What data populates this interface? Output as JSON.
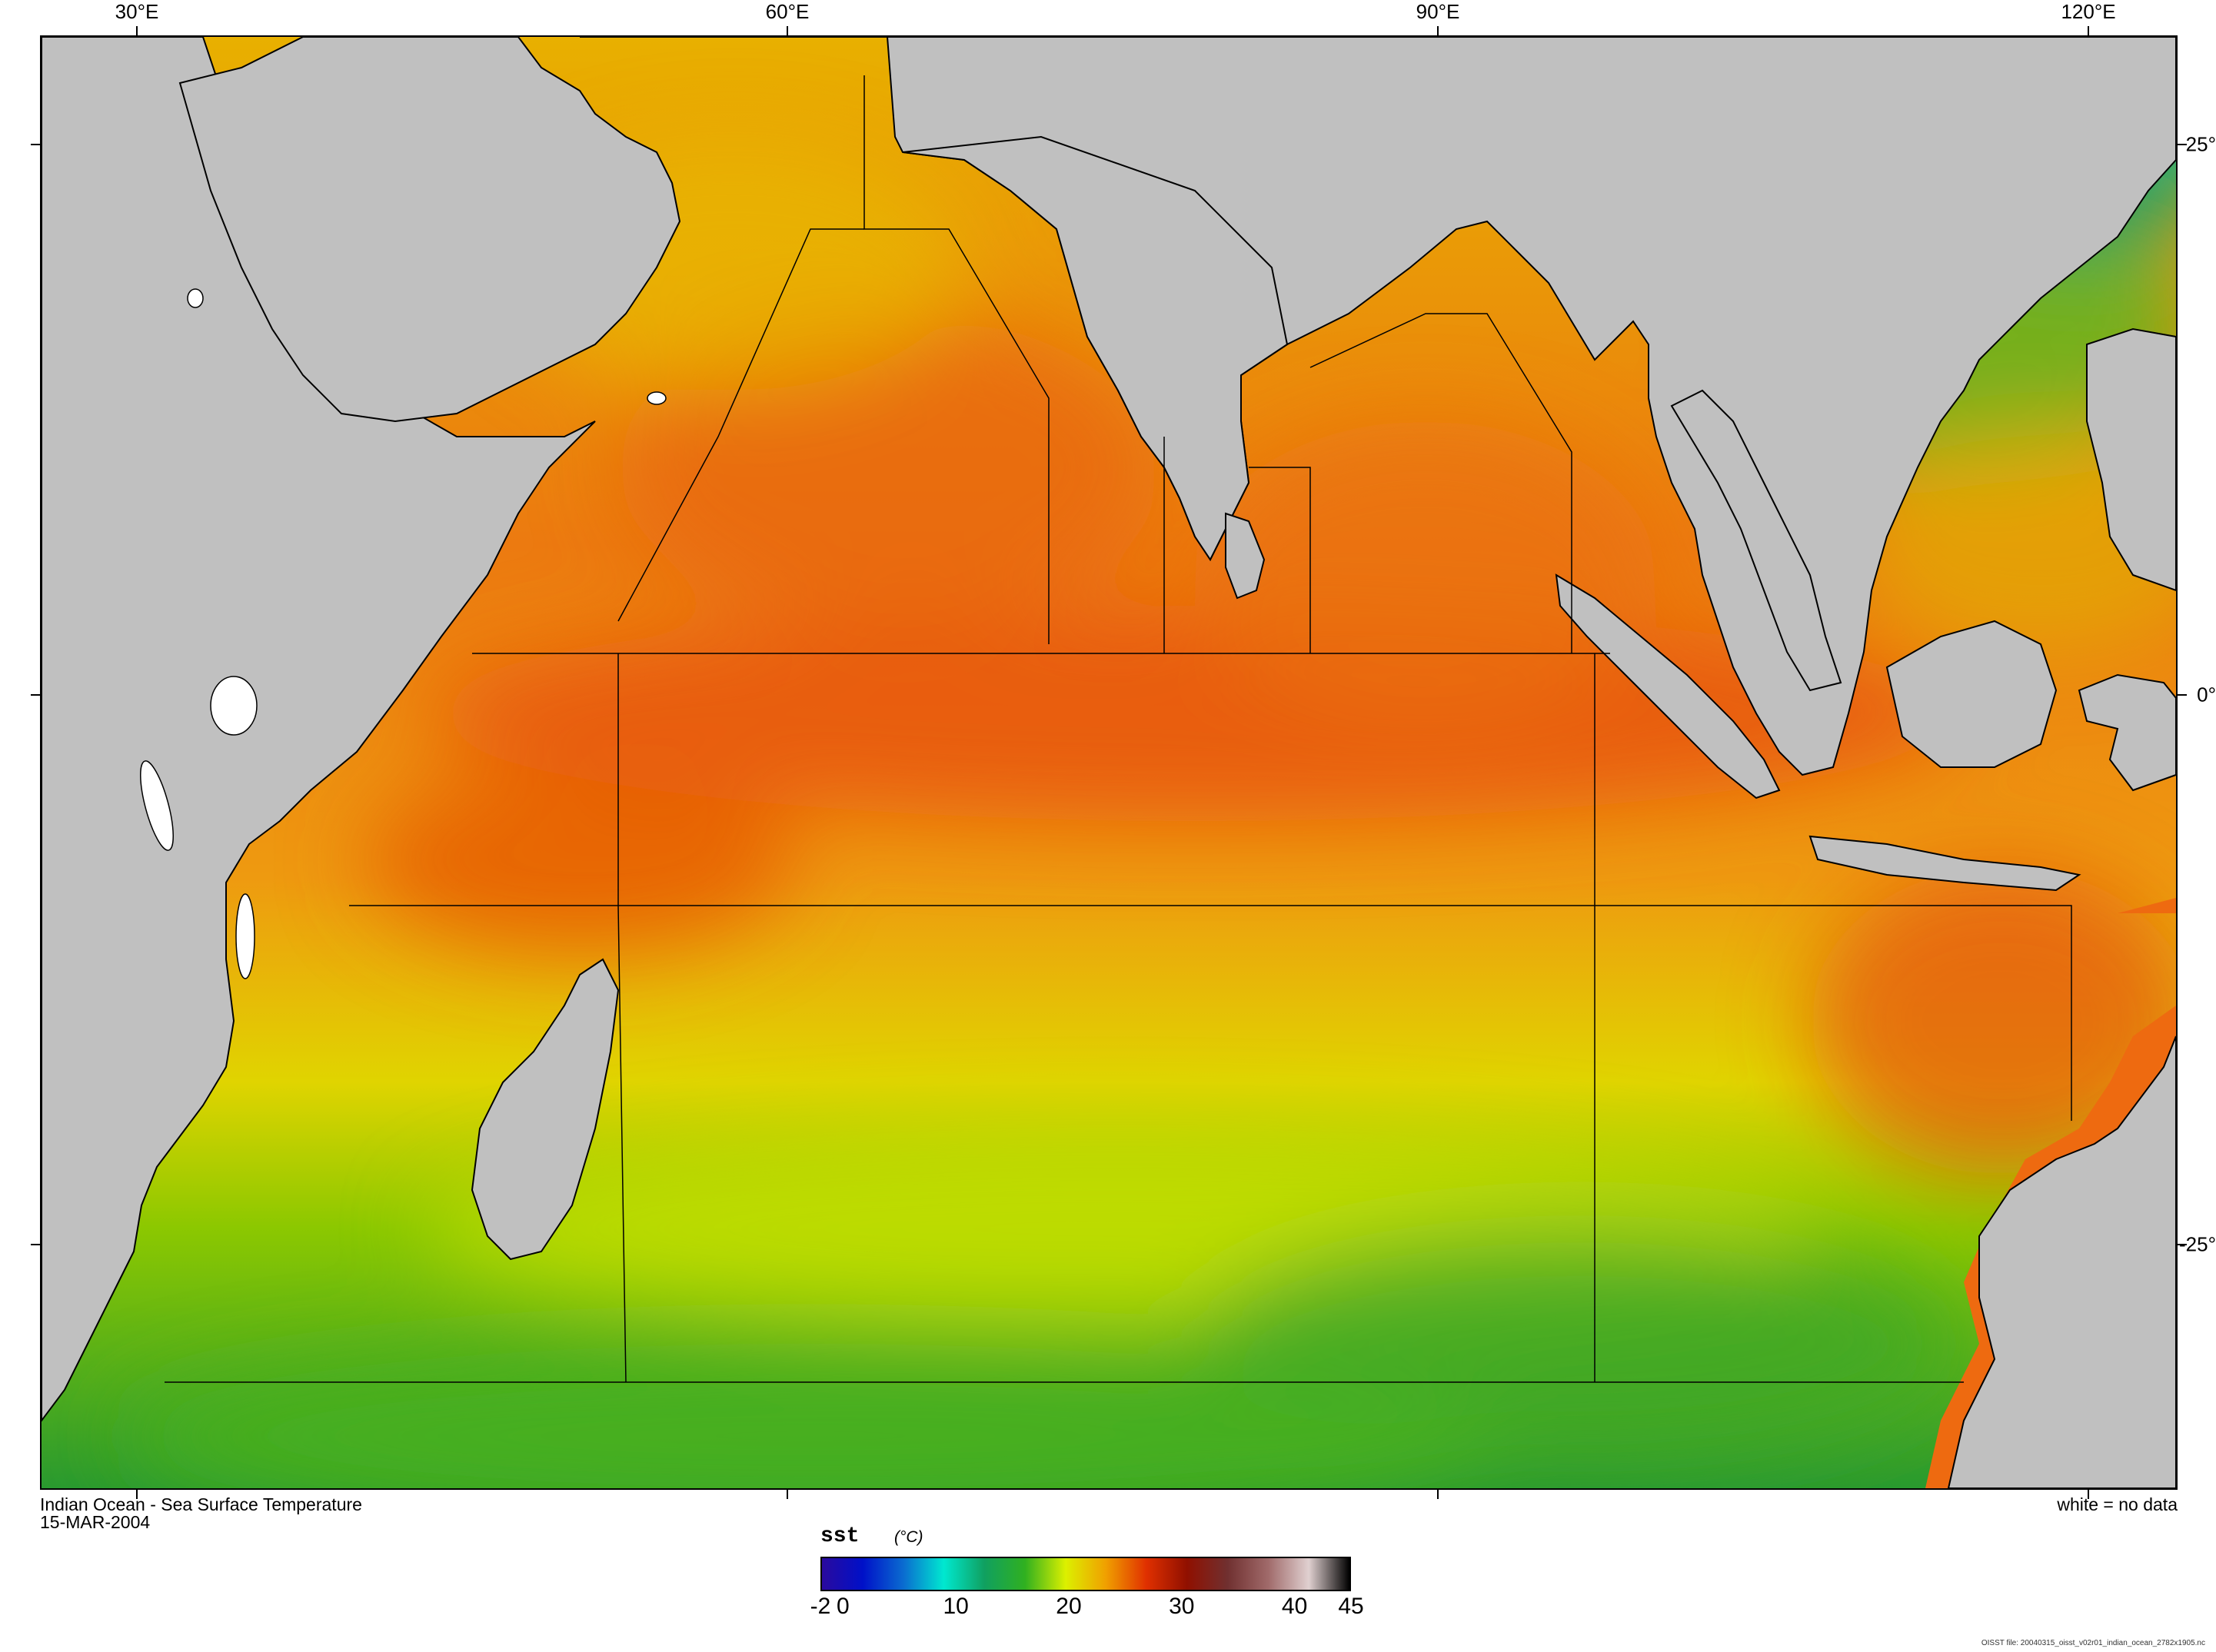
{
  "map": {
    "lon_labels": [
      {
        "text": "30°E",
        "lon": 30
      },
      {
        "text": "60°E",
        "lon": 60
      },
      {
        "text": "90°E",
        "lon": 90
      },
      {
        "text": "120°E",
        "lon": 120
      }
    ],
    "lat_labels": [
      {
        "text": "25°",
        "lat": 25
      },
      {
        "text": "0°",
        "lat": 0
      },
      {
        "text": "-25°",
        "lat": -25
      }
    ],
    "land_color": "#c0c0c0",
    "no_data_color": "#ffffff"
  },
  "caption": {
    "title": "Indian Ocean - Sea Surface Temperature",
    "date": "15-MAR-2004",
    "legend_note": "white = no data"
  },
  "colorbar": {
    "variable": "sst",
    "units": "(°C)",
    "tick_labels": [
      "-2",
      "0",
      "10",
      "20",
      "30",
      "40",
      "45"
    ],
    "tick_values": [
      -2,
      0,
      10,
      20,
      30,
      40,
      45
    ],
    "colors": [
      "#2a0a9e",
      "#0010c8",
      "#0a6bd0",
      "#00e8d0",
      "#10a060",
      "#30b020",
      "#dcf000",
      "#f0a000",
      "#e03000",
      "#901000",
      "#703030",
      "#a06a6a",
      "#e0d0d0",
      "#000000"
    ]
  },
  "fineprint": "OISST file: 20040315_oisst_v02r01_indian_ocean_2782x1905.nc"
}
